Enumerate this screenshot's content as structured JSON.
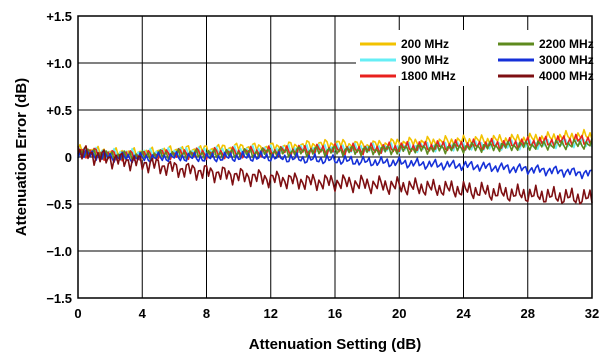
{
  "chart_data": {
    "type": "line",
    "xlabel": "Attenuation Setting (dB)",
    "ylabel": "Attenuation Error (dB)",
    "xlim": [
      0,
      32
    ],
    "ylim": [
      -1.5,
      1.5
    ],
    "x_ticks": [
      0,
      4,
      8,
      12,
      16,
      20,
      24,
      28,
      32
    ],
    "x_tick_labels": [
      "0",
      "4",
      "8",
      "12",
      "16",
      "20",
      "24",
      "28",
      "32"
    ],
    "y_ticks": [
      1.5,
      1.0,
      0.5,
      0,
      -0.5,
      -1.0,
      -1.5
    ],
    "y_tick_labels": [
      "+1.5",
      "+1.0",
      "+0.5",
      "0",
      "−0.5",
      "−1.0",
      "−1.5"
    ],
    "grid": true,
    "legend_position": "top-right",
    "x": [
      0,
      2,
      4,
      6,
      8,
      10,
      12,
      14,
      16,
      18,
      20,
      22,
      24,
      26,
      28,
      30,
      32
    ],
    "series": [
      {
        "name": "200 MHz",
        "color": "#F2C200",
        "values": [
          0.08,
          0.04,
          0.04,
          0.07,
          0.08,
          0.1,
          0.1,
          0.12,
          0.14,
          0.12,
          0.15,
          0.16,
          0.17,
          0.18,
          0.19,
          0.21,
          0.23
        ]
      },
      {
        "name": "900 MHz",
        "color": "#66EEF5",
        "values": [
          0.06,
          0.03,
          0.03,
          0.05,
          0.05,
          0.06,
          0.07,
          0.08,
          0.09,
          0.09,
          0.1,
          0.11,
          0.12,
          0.13,
          0.14,
          0.15,
          0.16
        ]
      },
      {
        "name": "1800 MHz",
        "color": "#E8201E",
        "values": [
          0.07,
          0.02,
          0.02,
          0.04,
          0.04,
          0.05,
          0.06,
          0.07,
          0.08,
          0.08,
          0.1,
          0.11,
          0.12,
          0.13,
          0.15,
          0.17,
          0.19
        ]
      },
      {
        "name": "2200 MHz",
        "color": "#5E8A1E",
        "values": [
          0.05,
          0.01,
          0.01,
          0.03,
          0.03,
          0.04,
          0.05,
          0.06,
          0.07,
          0.07,
          0.08,
          0.09,
          0.1,
          0.11,
          0.12,
          0.13,
          0.14
        ]
      },
      {
        "name": "3000 MHz",
        "color": "#1530D8",
        "values": [
          0.04,
          0.0,
          -0.01,
          0.0,
          -0.01,
          0.0,
          0.0,
          -0.02,
          -0.03,
          -0.05,
          -0.06,
          -0.08,
          -0.09,
          -0.11,
          -0.13,
          -0.15,
          -0.18
        ]
      },
      {
        "name": "4000 MHz",
        "color": "#7E0F12",
        "values": [
          0.05,
          -0.02,
          -0.06,
          -0.12,
          -0.16,
          -0.2,
          -0.23,
          -0.26,
          -0.27,
          -0.29,
          -0.31,
          -0.33,
          -0.35,
          -0.38,
          -0.4,
          -0.42,
          -0.44
        ]
      }
    ]
  }
}
